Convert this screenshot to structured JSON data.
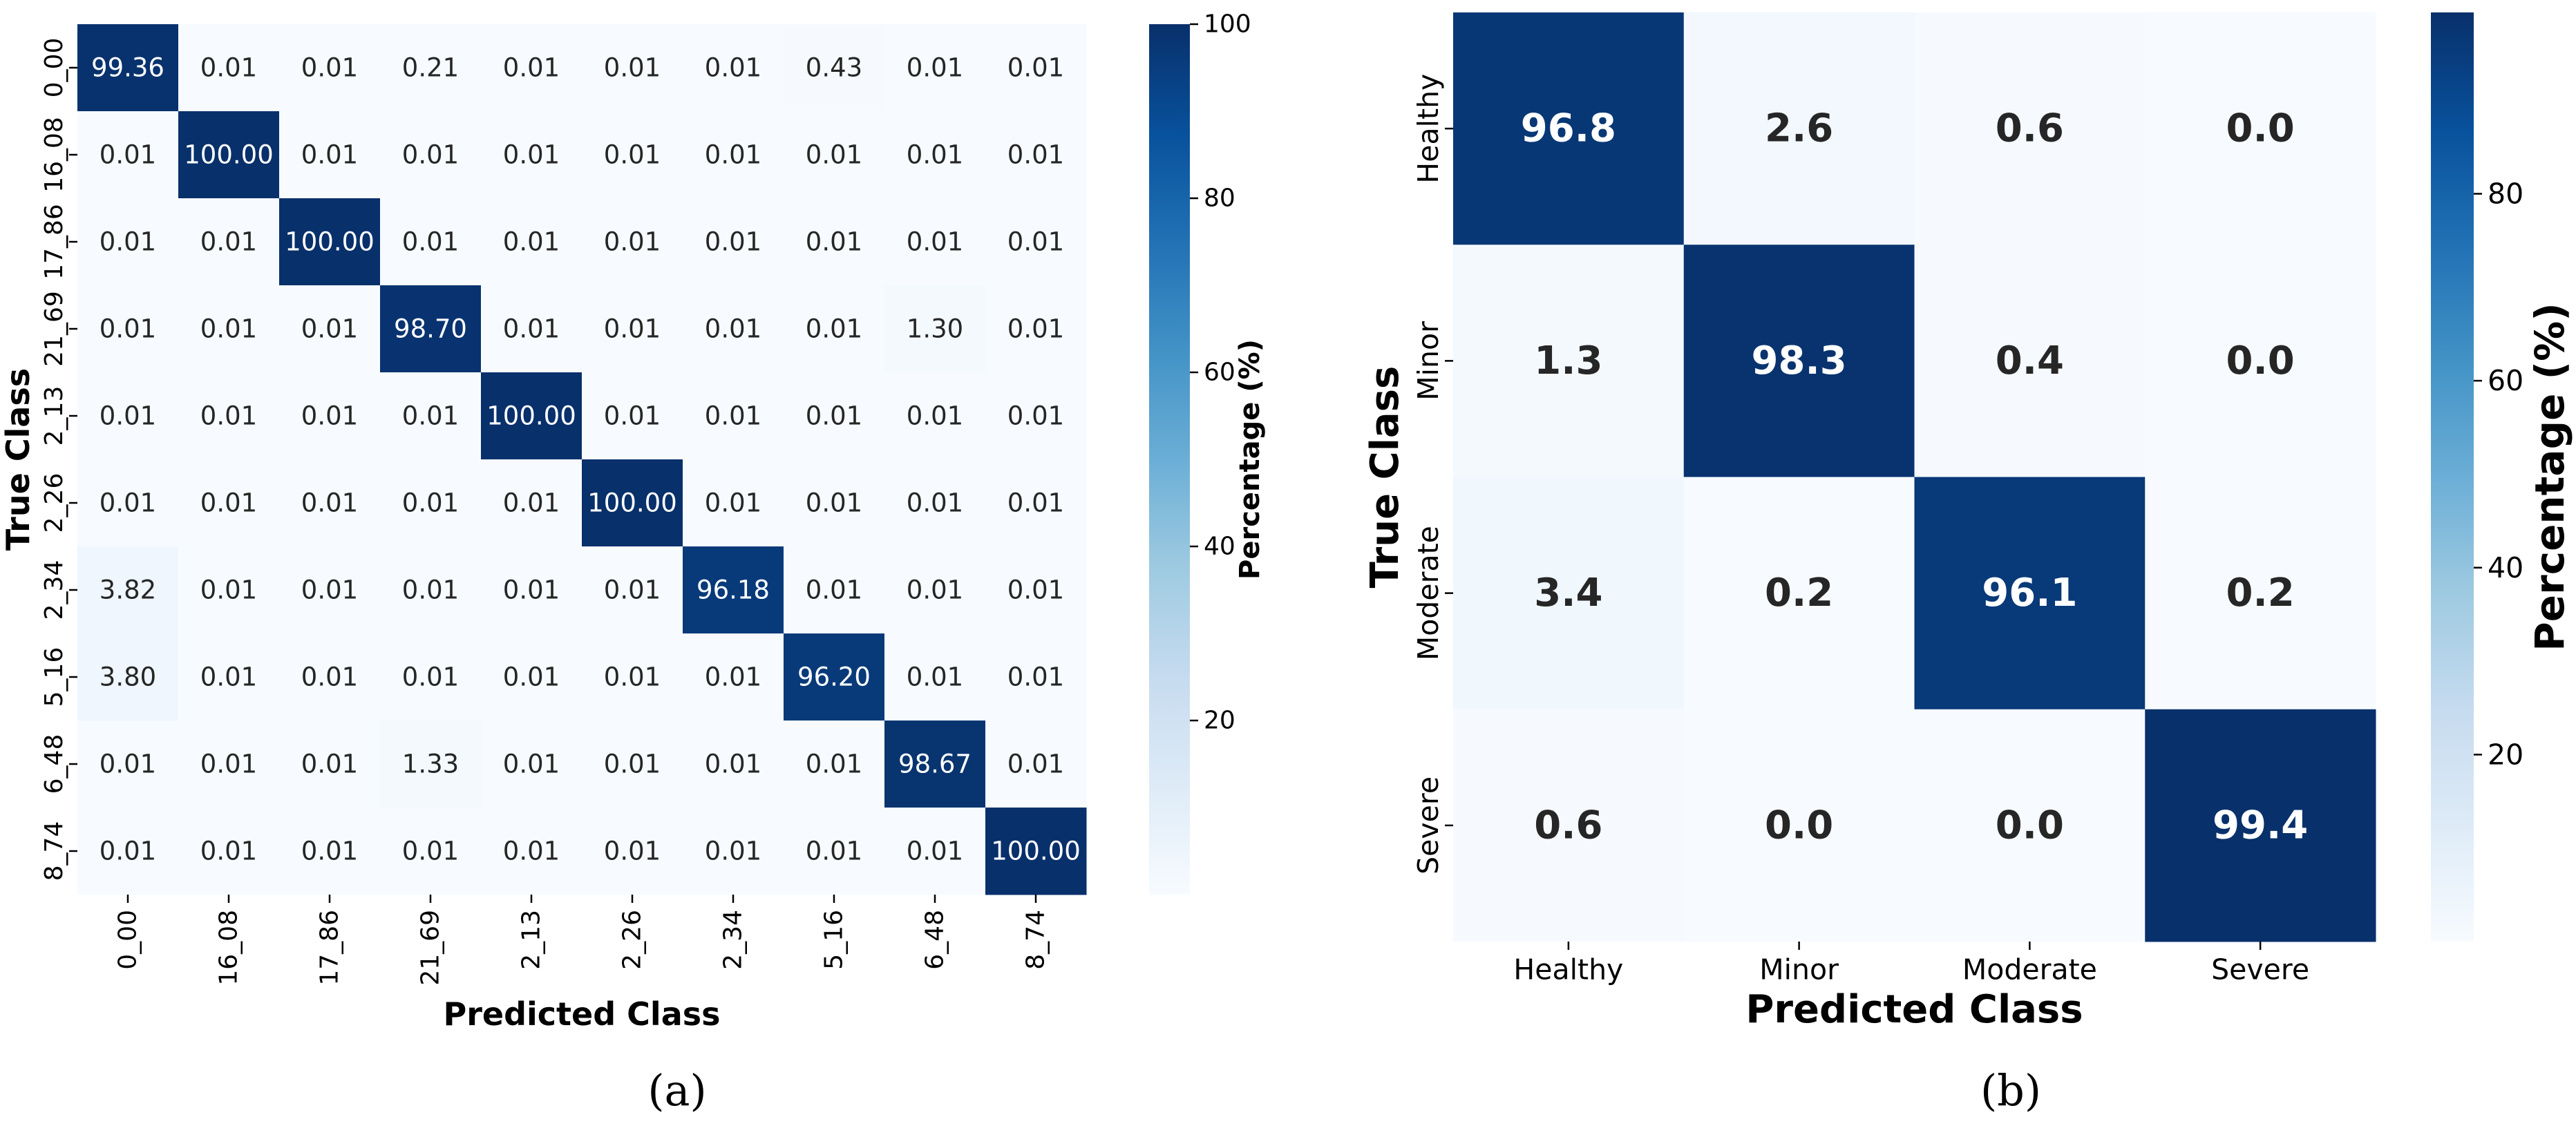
{
  "chart_data": [
    {
      "type": "heatmap",
      "panel_label": "(a)",
      "xlabel": "Predicted Class",
      "ylabel": "True Class",
      "x_categories": [
        "0_00",
        "16_08",
        "17_86",
        "21_69",
        "2_13",
        "2_26",
        "2_34",
        "5_16",
        "6_48",
        "8_74"
      ],
      "y_categories": [
        "0_00",
        "16_08",
        "17_86",
        "21_69",
        "2_13",
        "2_26",
        "2_34",
        "5_16",
        "6_48",
        "8_74"
      ],
      "values": [
        [
          99.36,
          0.01,
          0.01,
          0.21,
          0.01,
          0.01,
          0.01,
          0.43,
          0.01,
          0.01
        ],
        [
          0.01,
          100.0,
          0.01,
          0.01,
          0.01,
          0.01,
          0.01,
          0.01,
          0.01,
          0.01
        ],
        [
          0.01,
          0.01,
          100.0,
          0.01,
          0.01,
          0.01,
          0.01,
          0.01,
          0.01,
          0.01
        ],
        [
          0.01,
          0.01,
          0.01,
          98.7,
          0.01,
          0.01,
          0.01,
          0.01,
          1.3,
          0.01
        ],
        [
          0.01,
          0.01,
          0.01,
          0.01,
          100.0,
          0.01,
          0.01,
          0.01,
          0.01,
          0.01
        ],
        [
          0.01,
          0.01,
          0.01,
          0.01,
          0.01,
          100.0,
          0.01,
          0.01,
          0.01,
          0.01
        ],
        [
          3.82,
          0.01,
          0.01,
          0.01,
          0.01,
          0.01,
          96.18,
          0.01,
          0.01,
          0.01
        ],
        [
          3.8,
          0.01,
          0.01,
          0.01,
          0.01,
          0.01,
          0.01,
          96.2,
          0.01,
          0.01
        ],
        [
          0.01,
          0.01,
          0.01,
          1.33,
          0.01,
          0.01,
          0.01,
          0.01,
          98.67,
          0.01
        ],
        [
          0.01,
          0.01,
          0.01,
          0.01,
          0.01,
          0.01,
          0.01,
          0.01,
          0.01,
          100.0
        ]
      ],
      "decimals": 2,
      "colorbar": {
        "label": "Percentage (%)",
        "ticks": [
          20,
          40,
          60,
          80,
          100
        ],
        "range": [
          0,
          100
        ]
      }
    },
    {
      "type": "heatmap",
      "panel_label": "(b)",
      "xlabel": "Predicted Class",
      "ylabel": "True Class",
      "x_categories": [
        "Healthy",
        "Minor",
        "Moderate",
        "Severe"
      ],
      "y_categories": [
        "Healthy",
        "Minor",
        "Moderate",
        "Severe"
      ],
      "values": [
        [
          96.8,
          2.6,
          0.6,
          0.0
        ],
        [
          1.3,
          98.3,
          0.4,
          0.0
        ],
        [
          3.4,
          0.2,
          96.1,
          0.2
        ],
        [
          0.6,
          0.0,
          0.0,
          99.4
        ]
      ],
      "decimals": 1,
      "colorbar": {
        "label": "Percentage (%)",
        "ticks": [
          20,
          40,
          60,
          80
        ],
        "range": [
          0,
          99.4
        ]
      }
    }
  ],
  "colors": {
    "scale": [
      "#f7fbff",
      "#deebf7",
      "#c6dbef",
      "#9ecae1",
      "#6baed6",
      "#4292c6",
      "#2171b5",
      "#08519c",
      "#08306b"
    ]
  }
}
